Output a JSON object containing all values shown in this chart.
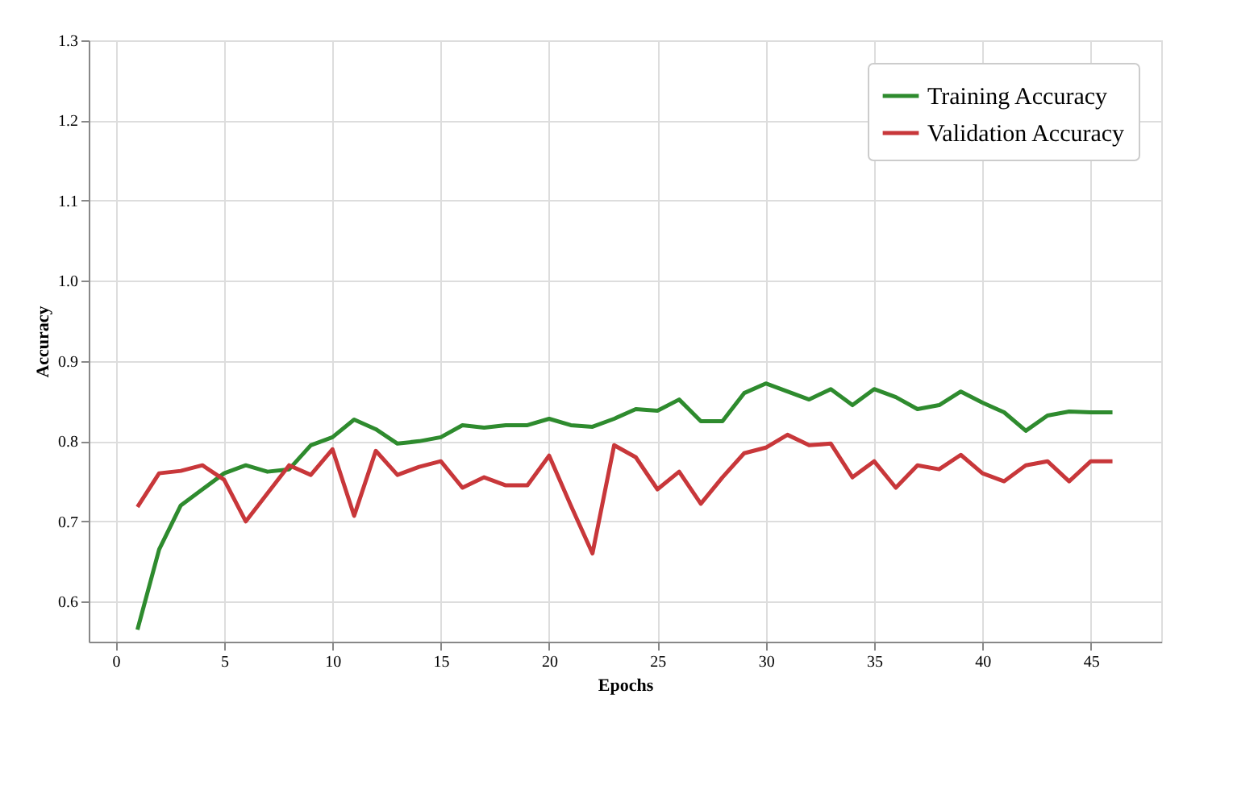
{
  "chart_data": {
    "type": "line",
    "xlabel": "Epochs",
    "ylabel": "Accuracy",
    "x": [
      1,
      2,
      3,
      4,
      5,
      6,
      7,
      8,
      9,
      10,
      11,
      12,
      13,
      14,
      15,
      16,
      17,
      18,
      19,
      20,
      21,
      22,
      23,
      24,
      25,
      26,
      27,
      28,
      29,
      30,
      31,
      32,
      33,
      34,
      35,
      36,
      37,
      38,
      39,
      40,
      41,
      42,
      43,
      44,
      45,
      46
    ],
    "series": [
      {
        "name": "Training Accuracy",
        "color": "#2e8b2e",
        "values": [
          0.565,
          0.665,
          0.72,
          0.74,
          0.76,
          0.77,
          0.762,
          0.765,
          0.795,
          0.805,
          0.827,
          0.815,
          0.797,
          0.8,
          0.805,
          0.82,
          0.817,
          0.82,
          0.82,
          0.828,
          0.82,
          0.818,
          0.828,
          0.84,
          0.838,
          0.852,
          0.825,
          0.825,
          0.86,
          0.872,
          0.862,
          0.852,
          0.865,
          0.845,
          0.865,
          0.855,
          0.84,
          0.845,
          0.862,
          0.848,
          0.836,
          0.813,
          0.832,
          0.837,
          0.836,
          0.836
        ]
      },
      {
        "name": "Validation Accuracy",
        "color": "#c8373a",
        "values": [
          0.718,
          0.76,
          0.763,
          0.77,
          0.752,
          0.7,
          0.735,
          0.77,
          0.758,
          0.79,
          0.707,
          0.788,
          0.758,
          0.768,
          0.775,
          0.742,
          0.755,
          0.745,
          0.745,
          0.782,
          0.72,
          0.66,
          0.795,
          0.78,
          0.74,
          0.762,
          0.722,
          0.755,
          0.785,
          0.792,
          0.808,
          0.795,
          0.797,
          0.755,
          0.775,
          0.742,
          0.77,
          0.765,
          0.783,
          0.76,
          0.75,
          0.77,
          0.775,
          0.75,
          0.775,
          0.775
        ]
      }
    ],
    "xlim": [
      -1.25,
      48.25
    ],
    "xticks": [
      0,
      5,
      10,
      15,
      20,
      25,
      30,
      35,
      40,
      45
    ],
    "ylim": [
      0.55,
      1.3
    ],
    "yticks": [
      0.6,
      0.7,
      0.8,
      0.9,
      {
        "value": 1.0,
        "label": "1.0"
      },
      1.1,
      1.2,
      1.3
    ],
    "grid": true,
    "legend": "top right",
    "line_style": "solid",
    "marker": "none"
  }
}
